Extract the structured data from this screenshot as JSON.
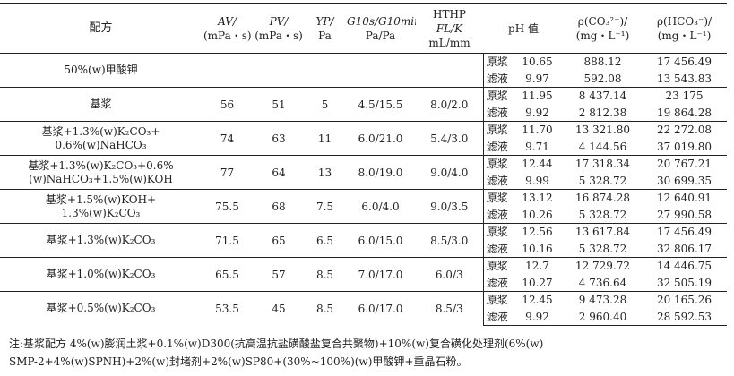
{
  "table": {
    "headers": {
      "formula": "配方",
      "av": [
        "AV/",
        "(mPa・s)"
      ],
      "pv": [
        "PV/",
        "(mPa・s)"
      ],
      "yp": [
        "YP/",
        "Pa"
      ],
      "gel": [
        "G10s/G10min",
        "Pa/Pa"
      ],
      "hthp": [
        "HTHP",
        "FL/K",
        "mL/mm"
      ],
      "ph": "pH 值",
      "co3": [
        "ρ(CO₃²⁻)/",
        "(mg・L⁻¹)"
      ],
      "hco3": [
        "ρ(HCO₃⁻)/",
        "(mg・L⁻¹)"
      ]
    },
    "groups": [
      {
        "formula": [
          "50%(w)甲酸钾"
        ],
        "av": "",
        "pv": "",
        "yp": "",
        "gel": "",
        "hthp": "",
        "rows": [
          {
            "state": "原浆",
            "ph": "10.65",
            "co3": "888.12",
            "hco3": "17 456.49"
          },
          {
            "state": "滤液",
            "ph": "9.97",
            "co3": "592.08",
            "hco3": "13 543.83"
          }
        ]
      },
      {
        "formula": [
          "基浆"
        ],
        "av": "56",
        "pv": "51",
        "yp": "5",
        "gel": "4.5/15.5",
        "hthp": "8.0/2.0",
        "rows": [
          {
            "state": "原浆",
            "ph": "11.95",
            "co3": "8 437.14",
            "hco3": "23 175"
          },
          {
            "state": "滤液",
            "ph": "9.92",
            "co3": "2 812.38",
            "hco3": "19 864.28"
          }
        ]
      },
      {
        "formula": [
          "基浆+1.3%(w)K₂CO₃+",
          "0.6%(w)NaHCO₃"
        ],
        "av": "74",
        "pv": "63",
        "yp": "11",
        "gel": "6.0/21.0",
        "hthp": "5.4/3.0",
        "rows": [
          {
            "state": "原浆",
            "ph": "11.70",
            "co3": "13 321.80",
            "hco3": "22 272.08"
          },
          {
            "state": "滤液",
            "ph": "9.71",
            "co3": "4 144.56",
            "hco3": "37 019.80"
          }
        ]
      },
      {
        "formula": [
          "基浆+1.3%(w)K₂CO₃+0.6%",
          "(w)NaHCO₃+1.5%(w)KOH"
        ],
        "av": "77",
        "pv": "64",
        "yp": "13",
        "gel": "8.0/19.0",
        "hthp": "9.0/4.0",
        "rows": [
          {
            "state": "原浆",
            "ph": "12.44",
            "co3": "17 318.34",
            "hco3": "20 767.21"
          },
          {
            "state": "滤液",
            "ph": "9.99",
            "co3": "5 328.72",
            "hco3": "30 699.35"
          }
        ]
      },
      {
        "formula": [
          "基浆+1.5%(w)KOH+",
          "1.3%(w)K₂CO₃"
        ],
        "av": "75.5",
        "pv": "68",
        "yp": "7.5",
        "gel": "6.0/4.0",
        "hthp": "9.0/3.5",
        "rows": [
          {
            "state": "原浆",
            "ph": "13.12",
            "co3": "16 874.28",
            "hco3": "12 640.91"
          },
          {
            "state": "滤液",
            "ph": "10.26",
            "co3": "5 328.72",
            "hco3": "27 990.58"
          }
        ]
      },
      {
        "formula": [
          "基浆+1.3%(w)K₂CO₃"
        ],
        "av": "71.5",
        "pv": "65",
        "yp": "6.5",
        "gel": "6.0/15.0",
        "hthp": "8.5/3.0",
        "rows": [
          {
            "state": "原浆",
            "ph": "12.56",
            "co3": "13 617.84",
            "hco3": "17 456.49"
          },
          {
            "state": "滤液",
            "ph": "10.16",
            "co3": "5 328.72",
            "hco3": "32 806.17"
          }
        ]
      },
      {
        "formula": [
          "基浆+1.0%(w)K₂CO₃"
        ],
        "av": "65.5",
        "pv": "57",
        "yp": "8.5",
        "gel": "7.0/17.0",
        "hthp": "6.0/3",
        "rows": [
          {
            "state": "原浆",
            "ph": "12.7",
            "co3": "12 729.72",
            "hco3": "14 446.75"
          },
          {
            "state": "滤液",
            "ph": "10.27",
            "co3": "4 736.64",
            "hco3": "32 505.19"
          }
        ]
      },
      {
        "formula": [
          "基浆+0.5%(w)K₂CO₃"
        ],
        "av": "53.5",
        "pv": "45",
        "yp": "8.5",
        "gel": "6.0/17.0",
        "hthp": "8.5/3",
        "rows": [
          {
            "state": "原浆",
            "ph": "12.45",
            "co3": "9 473.28",
            "hco3": "20 165.26"
          },
          {
            "state": "滤液",
            "ph": "9.92",
            "co3": "2 960.40",
            "hco3": "28 592.53"
          }
        ]
      }
    ]
  },
  "note": [
    "注:基浆配方 4%(w)膨润土浆+0.1%(w)D300(抗高温抗盐磺酸盐复合共聚物)+10%(w)复合磺化处理剂(6%(w)",
    "SMP-2+4%(w)SPNH)+2%(w)封堵剂+2%(w)SP80+(30%~100%)(w)甲酸钾+重晶石粉。"
  ]
}
